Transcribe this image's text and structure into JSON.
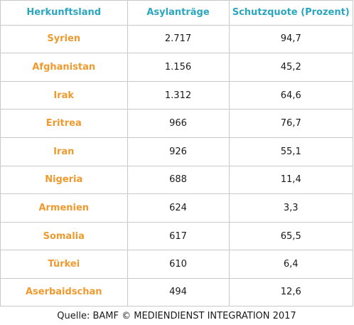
{
  "colors": {
    "header_text": "#2aa6bf",
    "country_text": "#ef9a2e",
    "value_text": "#1a1a1a",
    "grid_lines": "#c9c9c9"
  },
  "chart_data": {
    "type": "table",
    "columns": [
      "Herkunftsland",
      "Asylanträge",
      "Schutzquote (Prozent)"
    ],
    "rows": [
      [
        "Syrien",
        "2.717",
        "94,7"
      ],
      [
        "Afghanistan",
        "1.156",
        "45,2"
      ],
      [
        "Irak",
        "1.312",
        "64,6"
      ],
      [
        "Eritrea",
        "966",
        "76,7"
      ],
      [
        "Iran",
        "926",
        "55,1"
      ],
      [
        "Nigeria",
        "688",
        "11,4"
      ],
      [
        "Armenien",
        "624",
        "3,3"
      ],
      [
        "Somalia",
        "617",
        "65,5"
      ],
      [
        "Türkei",
        "610",
        "6,4"
      ],
      [
        "Aserbaidschan",
        "494",
        "12,6"
      ]
    ]
  },
  "source": "Quelle: BAMF © MEDIENDIENST INTEGRATION 2017"
}
